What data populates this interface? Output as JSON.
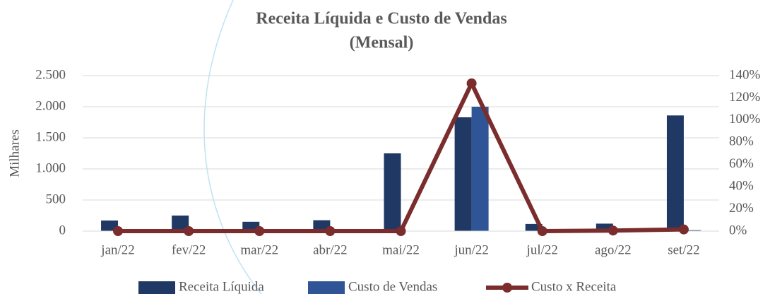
{
  "chart_data": {
    "type": "bar_line",
    "title": "Receita Líquida e Custo de Vendas",
    "subtitle": "(Mensal)",
    "y_label": "Milhares",
    "categories": [
      "jan/22",
      "fev/22",
      "mar/22",
      "abr/22",
      "mai/22",
      "jun/22",
      "jul/22",
      "ago/22",
      "set/22"
    ],
    "series": [
      {
        "name": "Receita Líquida",
        "color": "#1f3864",
        "type": "bar",
        "values": [
          170,
          250,
          150,
          175,
          1250,
          1830,
          115,
          120,
          1860
        ]
      },
      {
        "name": "Custo de Vendas",
        "color": "#2f5597",
        "type": "bar",
        "values": [
          0,
          0,
          0,
          0,
          0,
          2000,
          0,
          0,
          15
        ]
      },
      {
        "name": "Custo x Receita",
        "color": "#7b2d2d",
        "type": "line",
        "axis": "y2",
        "values": [
          0,
          0,
          0,
          0,
          0,
          133,
          0,
          0.5,
          1.5
        ]
      }
    ],
    "ylim": [
      0,
      2500
    ],
    "yticks": [
      0,
      500,
      {
        "value": 1000,
        "label": "1.000"
      },
      {
        "value": 1500,
        "label": "1.500"
      },
      {
        "value": 2000,
        "label": "2.000"
      },
      {
        "value": 2500,
        "label": "2.500"
      }
    ],
    "y2lim": [
      0,
      140
    ],
    "y2ticks": [
      {
        "value": 0,
        "label": "0%"
      },
      {
        "value": 20,
        "label": "20%"
      },
      {
        "value": 40,
        "label": "40%"
      },
      {
        "value": 60,
        "label": "60%"
      },
      {
        "value": 80,
        "label": "80%"
      },
      {
        "value": 100,
        "label": "100%"
      },
      {
        "value": 120,
        "label": "120%"
      },
      {
        "value": 140,
        "label": "140%"
      }
    ],
    "grid": true,
    "legend": "bottom"
  }
}
